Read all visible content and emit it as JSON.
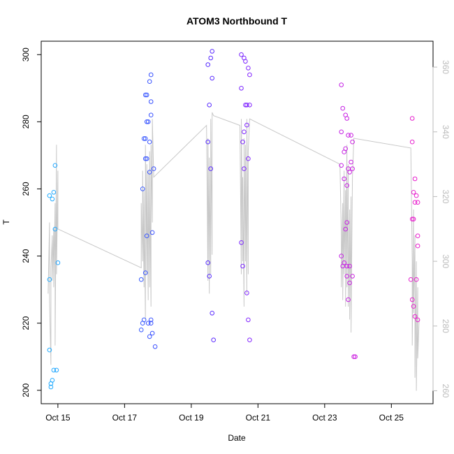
{
  "chart_data": {
    "type": "scatter",
    "title": "ATOM3 Northbound T",
    "xlabel": "Date",
    "ylabel": "T",
    "x_ticks": [
      "Oct 15",
      "Oct 17",
      "Oct 19",
      "Oct 21",
      "Oct 23",
      "Oct 25"
    ],
    "y_ticks": [
      200,
      220,
      240,
      260,
      280,
      300
    ],
    "y2_ticks": [
      260,
      280,
      300,
      320,
      340,
      360
    ],
    "xlim": [
      "Oct 14 12:00",
      "Oct 26 06:00"
    ],
    "ylim": [
      196,
      304
    ],
    "y2lim": [
      256,
      368
    ],
    "grid": false,
    "colors": {
      "axis": "#000000",
      "secondary_axis": "#bbbbbb",
      "line": "#c8c8c8",
      "point_gradient": [
        "#1fb4ff",
        "#2e6cff",
        "#4b2dff",
        "#a020ff",
        "#cc22e0",
        "#f020c8"
      ]
    },
    "series": [
      {
        "marker": "open-circle",
        "axis": "left",
        "points": [
          [
            "Oct 14 18:00",
            212
          ],
          [
            "Oct 14 18:00",
            233
          ],
          [
            "Oct 14 18:00",
            258
          ],
          [
            "Oct 14 19:00",
            201
          ],
          [
            "Oct 14 19:00",
            202
          ],
          [
            "Oct 14 20:00",
            203
          ],
          [
            "Oct 14 20:00",
            257
          ],
          [
            "Oct 14 21:00",
            259
          ],
          [
            "Oct 14 21:00",
            206
          ],
          [
            "Oct 14 22:00",
            248
          ],
          [
            "Oct 14 22:00",
            267
          ],
          [
            "Oct 14 23:00",
            206
          ],
          [
            "Oct 15 00:00",
            238
          ],
          [
            "Oct 17 12:00",
            233
          ],
          [
            "Oct 17 12:00",
            218
          ],
          [
            "Oct 17 13:00",
            220
          ],
          [
            "Oct 17 13:00",
            260
          ],
          [
            "Oct 17 14:00",
            275
          ],
          [
            "Oct 17 14:00",
            221
          ],
          [
            "Oct 17 15:00",
            275
          ],
          [
            "Oct 17 15:00",
            235
          ],
          [
            "Oct 17 15:00",
            288
          ],
          [
            "Oct 17 15:00",
            269
          ],
          [
            "Oct 17 16:00",
            246
          ],
          [
            "Oct 17 16:00",
            288
          ],
          [
            "Oct 17 16:00",
            280
          ],
          [
            "Oct 17 16:00",
            269
          ],
          [
            "Oct 17 17:00",
            280
          ],
          [
            "Oct 17 17:00",
            220
          ],
          [
            "Oct 17 18:00",
            274
          ],
          [
            "Oct 17 18:00",
            292
          ],
          [
            "Oct 17 18:00",
            216
          ],
          [
            "Oct 17 18:00",
            265
          ],
          [
            "Oct 17 19:00",
            220
          ],
          [
            "Oct 17 19:00",
            221
          ],
          [
            "Oct 17 19:00",
            294
          ],
          [
            "Oct 17 19:00",
            286
          ],
          [
            "Oct 17 19:00",
            282
          ],
          [
            "Oct 17 20:00",
            247
          ],
          [
            "Oct 17 20:00",
            217
          ],
          [
            "Oct 17 21:00",
            266
          ],
          [
            "Oct 17 22:00",
            213
          ],
          [
            "Oct 19 12:00",
            297
          ],
          [
            "Oct 19 12:00",
            238
          ],
          [
            "Oct 19 12:00",
            274
          ],
          [
            "Oct 19 13:00",
            234
          ],
          [
            "Oct 19 13:00",
            285
          ],
          [
            "Oct 19 14:00",
            299
          ],
          [
            "Oct 19 14:00",
            266
          ],
          [
            "Oct 19 15:00",
            223
          ],
          [
            "Oct 19 15:00",
            301
          ],
          [
            "Oct 19 15:00",
            293
          ],
          [
            "Oct 19 16:00",
            215
          ],
          [
            "Oct 20 12:00",
            300
          ],
          [
            "Oct 20 12:00",
            290
          ],
          [
            "Oct 20 12:00",
            244
          ],
          [
            "Oct 20 13:00",
            274
          ],
          [
            "Oct 20 13:00",
            237
          ],
          [
            "Oct 20 14:00",
            299
          ],
          [
            "Oct 20 14:00",
            277
          ],
          [
            "Oct 20 14:00",
            266
          ],
          [
            "Oct 20 15:00",
            285
          ],
          [
            "Oct 20 15:00",
            298
          ],
          [
            "Oct 20 16:00",
            285
          ],
          [
            "Oct 20 16:00",
            279
          ],
          [
            "Oct 20 16:00",
            229
          ],
          [
            "Oct 20 17:00",
            296
          ],
          [
            "Oct 20 17:00",
            269
          ],
          [
            "Oct 20 17:00",
            221
          ],
          [
            "Oct 20 18:00",
            294
          ],
          [
            "Oct 20 18:00",
            285
          ],
          [
            "Oct 20 18:00",
            215
          ],
          [
            "Oct 23 12:00",
            291
          ],
          [
            "Oct 23 12:00",
            277
          ],
          [
            "Oct 23 12:00",
            267
          ],
          [
            "Oct 23 12:00",
            240
          ],
          [
            "Oct 23 13:00",
            237
          ],
          [
            "Oct 23 13:00",
            284
          ],
          [
            "Oct 23 14:00",
            271
          ],
          [
            "Oct 23 14:00",
            263
          ],
          [
            "Oct 23 14:00",
            238
          ],
          [
            "Oct 23 15:00",
            282
          ],
          [
            "Oct 23 15:00",
            272
          ],
          [
            "Oct 23 15:00",
            248
          ],
          [
            "Oct 23 16:00",
            281
          ],
          [
            "Oct 23 16:00",
            261
          ],
          [
            "Oct 23 16:00",
            250
          ],
          [
            "Oct 23 16:00",
            234
          ],
          [
            "Oct 23 16:00",
            237
          ],
          [
            "Oct 23 17:00",
            276
          ],
          [
            "Oct 23 17:00",
            266
          ],
          [
            "Oct 23 17:00",
            227
          ],
          [
            "Oct 23 18:00",
            265
          ],
          [
            "Oct 23 18:00",
            237
          ],
          [
            "Oct 23 18:00",
            232
          ],
          [
            "Oct 23 19:00",
            276
          ],
          [
            "Oct 23 19:00",
            268
          ],
          [
            "Oct 23 20:00",
            274
          ],
          [
            "Oct 23 20:00",
            266
          ],
          [
            "Oct 23 20:00",
            234
          ],
          [
            "Oct 23 21:00",
            210
          ],
          [
            "Oct 23 22:00",
            210
          ],
          [
            "Oct 25 14:00",
            233
          ],
          [
            "Oct 25 15:00",
            281
          ],
          [
            "Oct 25 15:00",
            274
          ],
          [
            "Oct 25 15:00",
            251
          ],
          [
            "Oct 25 15:00",
            227
          ],
          [
            "Oct 25 16:00",
            259
          ],
          [
            "Oct 25 16:00",
            251
          ],
          [
            "Oct 25 16:00",
            225
          ],
          [
            "Oct 25 17:00",
            263
          ],
          [
            "Oct 25 17:00",
            256
          ],
          [
            "Oct 25 17:00",
            222
          ],
          [
            "Oct 25 18:00",
            258
          ],
          [
            "Oct 25 18:00",
            233
          ],
          [
            "Oct 25 19:00",
            256
          ],
          [
            "Oct 25 19:00",
            246
          ],
          [
            "Oct 25 19:00",
            243
          ],
          [
            "Oct 25 19:00",
            221
          ]
        ]
      },
      {
        "marker": "line",
        "axis": "right",
        "points": [
          [
            "Oct 14 17:00",
            290
          ],
          [
            "Oct 14 18:00",
            312
          ],
          [
            "Oct 14 18:00",
            288
          ],
          [
            "Oct 14 19:00",
            268
          ],
          [
            "Oct 14 19:00",
            298
          ],
          [
            "Oct 14 20:00",
            308
          ],
          [
            "Oct 14 20:00",
            294
          ],
          [
            "Oct 14 21:00",
            310
          ],
          [
            "Oct 14 21:00",
            292
          ],
          [
            "Oct 14 22:00",
            318
          ],
          [
            "Oct 14 22:00",
            274
          ],
          [
            "Oct 14 23:00",
            336
          ],
          [
            "Oct 14 23:00",
            296
          ],
          [
            "Oct 15 00:00",
            328
          ],
          [
            "Oct 15 00:00",
            310
          ],
          [
            "Oct 17 12:00",
            298
          ],
          [
            "Oct 17 12:00",
            318
          ],
          [
            "Oct 17 13:00",
            300
          ],
          [
            "Oct 17 13:00",
            328
          ],
          [
            "Oct 17 14:00",
            292
          ],
          [
            "Oct 17 14:00",
            322
          ],
          [
            "Oct 17 15:00",
            282
          ],
          [
            "Oct 17 15:00",
            336
          ],
          [
            "Oct 17 16:00",
            296
          ],
          [
            "Oct 17 16:00",
            330
          ],
          [
            "Oct 17 17:00",
            288
          ],
          [
            "Oct 17 17:00",
            328
          ],
          [
            "Oct 17 18:00",
            292
          ],
          [
            "Oct 17 18:00",
            334
          ],
          [
            "Oct 17 19:00",
            286
          ],
          [
            "Oct 17 19:00",
            336
          ],
          [
            "Oct 17 20:00",
            312
          ],
          [
            "Oct 17 20:00",
            344
          ],
          [
            "Oct 17 21:00",
            326
          ],
          [
            "Oct 19 11:00",
            342
          ],
          [
            "Oct 19 12:00",
            294
          ],
          [
            "Oct 19 12:00",
            338
          ],
          [
            "Oct 19 13:00",
            290
          ],
          [
            "Oct 19 13:00",
            332
          ],
          [
            "Oct 19 14:00",
            296
          ],
          [
            "Oct 19 14:00",
            344
          ],
          [
            "Oct 19 15:00",
            302
          ],
          [
            "Oct 19 15:00",
            346
          ],
          [
            "Oct 19 16:00",
            345
          ],
          [
            "Oct 20 11:00",
            342
          ],
          [
            "Oct 20 12:00",
            296
          ],
          [
            "Oct 20 12:00",
            344
          ],
          [
            "Oct 20 13:00",
            300
          ],
          [
            "Oct 20 13:00",
            326
          ],
          [
            "Oct 20 14:00",
            286
          ],
          [
            "Oct 20 14:00",
            338
          ],
          [
            "Oct 20 15:00",
            300
          ],
          [
            "Oct 20 15:00",
            336
          ],
          [
            "Oct 20 16:00",
            290
          ],
          [
            "Oct 20 16:00",
            344
          ],
          [
            "Oct 20 17:00",
            296
          ],
          [
            "Oct 20 17:00",
            334
          ],
          [
            "Oct 20 18:00",
            344
          ],
          [
            "Oct 23 11:00",
            330
          ],
          [
            "Oct 23 12:00",
            308
          ],
          [
            "Oct 23 12:00",
            292
          ],
          [
            "Oct 23 13:00",
            318
          ],
          [
            "Oct 23 13:00",
            288
          ],
          [
            "Oct 23 14:00",
            328
          ],
          [
            "Oct 23 14:00",
            296
          ],
          [
            "Oct 23 15:00",
            322
          ],
          [
            "Oct 23 15:00",
            286
          ],
          [
            "Oct 23 16:00",
            336
          ],
          [
            "Oct 23 16:00",
            292
          ],
          [
            "Oct 23 17:00",
            330
          ],
          [
            "Oct 23 17:00",
            286
          ],
          [
            "Oct 23 18:00",
            316
          ],
          [
            "Oct 23 18:00",
            282
          ],
          [
            "Oct 23 19:00",
            320
          ],
          [
            "Oct 23 19:00",
            278
          ],
          [
            "Oct 23 20:00",
            326
          ],
          [
            "Oct 23 21:00",
            338
          ],
          [
            "Oct 25 14:00",
            335
          ],
          [
            "Oct 25 15:00",
            300
          ],
          [
            "Oct 25 15:00",
            274
          ],
          [
            "Oct 25 16:00",
            316
          ],
          [
            "Oct 25 16:00",
            284
          ],
          [
            "Oct 25 17:00",
            308
          ],
          [
            "Oct 25 17:00",
            264
          ],
          [
            "Oct 25 18:00",
            300
          ],
          [
            "Oct 25 18:00",
            260
          ],
          [
            "Oct 25 19:00",
            292
          ],
          [
            "Oct 25 19:00",
            270
          ],
          [
            "Oct 25 20:00",
            282
          ]
        ]
      }
    ]
  }
}
